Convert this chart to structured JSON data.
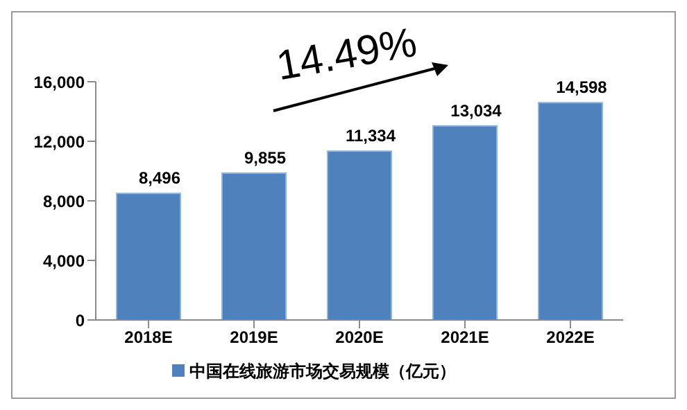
{
  "chart_data": {
    "type": "bar",
    "categories": [
      "2018E",
      "2019E",
      "2020E",
      "2021E",
      "2022E"
    ],
    "series": [
      {
        "name": "中国在线旅游市场交易规模（亿元）",
        "color": "#4f81bd",
        "values": [
          8496,
          9855,
          11334,
          13034,
          14598
        ],
        "value_labels": [
          "8,496",
          "9,855",
          "11,334",
          "13,034",
          "14,598"
        ]
      }
    ],
    "ylim": [
      0,
      16000
    ],
    "yticks": [
      {
        "value": 0,
        "label": "0"
      },
      {
        "value": 4000,
        "label": "4,000"
      },
      {
        "value": 8000,
        "label": "8,000"
      },
      {
        "value": 12000,
        "label": "12,000"
      },
      {
        "value": 16000,
        "label": "16,000"
      }
    ],
    "annotations": [
      "14.49%"
    ],
    "grid": false,
    "legend": "bottom"
  }
}
